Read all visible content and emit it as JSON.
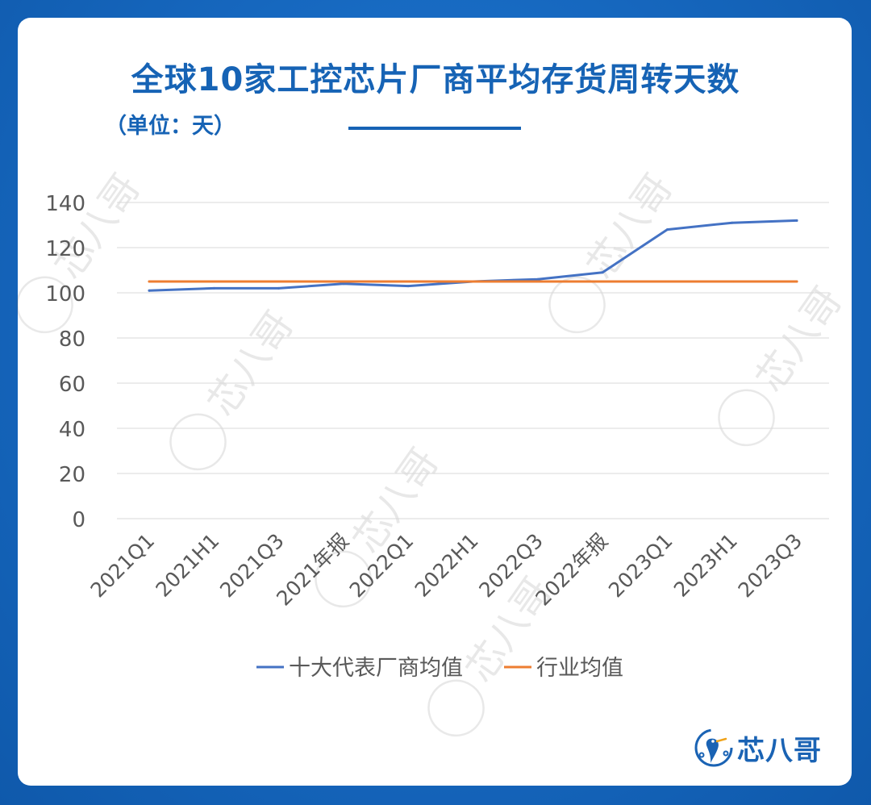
{
  "chart_data": {
    "type": "line",
    "title": "全球10家工控芯片厂商平均存货周转天数",
    "subtitle": "（单位：天）",
    "categories": [
      "2021Q1",
      "2021H1",
      "2021Q3",
      "2021年报",
      "2022Q1",
      "2022H1",
      "2022Q3",
      "2022年报",
      "2023Q1",
      "2023H1",
      "2023Q3"
    ],
    "series": [
      {
        "name": "十大代表厂商均值",
        "color": "#4472c4",
        "values": [
          101,
          102,
          102,
          104,
          103,
          105,
          106,
          109,
          128,
          131,
          132
        ]
      },
      {
        "name": "行业均值",
        "color": "#ed7d31",
        "values": [
          105,
          105,
          105,
          105,
          105,
          105,
          105,
          105,
          105,
          105,
          105
        ]
      }
    ],
    "yticks": [
      "0",
      "20",
      "40",
      "60",
      "80",
      "100",
      "120",
      "140"
    ],
    "ylim": [
      0,
      140
    ],
    "grid": true,
    "legend_position": "bottom"
  },
  "branding": {
    "logo_text": "芯八哥",
    "watermark_text": "芯八哥"
  }
}
